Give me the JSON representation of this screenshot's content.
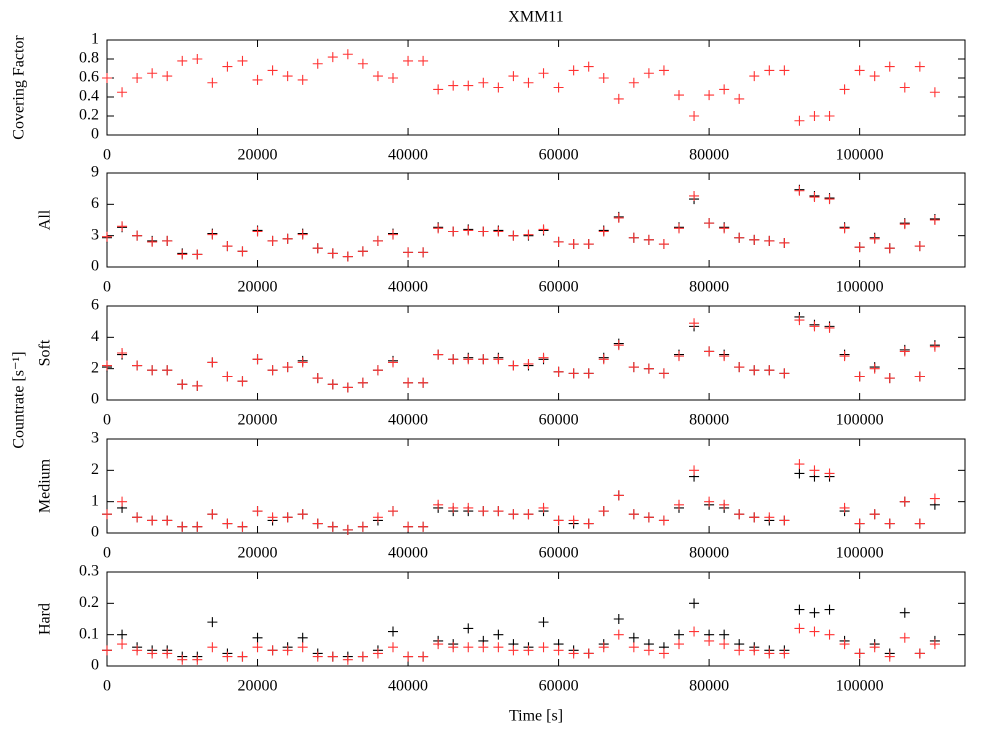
{
  "title": "XMM11",
  "shared_ylabel": "Countrate [s⁻¹]",
  "chart_data": [
    {
      "type": "scatter",
      "ylabel": "Covering Factor",
      "x": [
        0,
        2000,
        4000,
        6000,
        8000,
        10000,
        12000,
        14000,
        16000,
        18000,
        20000,
        22000,
        24000,
        26000,
        28000,
        30000,
        32000,
        34000,
        36000,
        38000,
        40000,
        42000,
        44000,
        46000,
        48000,
        50000,
        52000,
        54000,
        56000,
        58000,
        60000,
        62000,
        64000,
        66000,
        68000,
        70000,
        72000,
        74000,
        76000,
        78000,
        80000,
        82000,
        84000,
        86000,
        88000,
        90000,
        92000,
        94000,
        96000,
        98000,
        100000,
        102000,
        104000,
        106000,
        108000,
        110000
      ],
      "series": [
        {
          "color": "#ff3333",
          "values": [
            0.6,
            0.45,
            0.6,
            0.65,
            0.62,
            0.78,
            0.8,
            0.55,
            0.72,
            0.78,
            0.58,
            0.68,
            0.62,
            0.58,
            0.75,
            0.82,
            0.85,
            0.75,
            0.62,
            0.6,
            0.78,
            0.78,
            0.48,
            0.52,
            0.52,
            0.55,
            0.5,
            0.62,
            0.55,
            0.65,
            0.5,
            0.68,
            0.72,
            0.6,
            0.38,
            0.55,
            0.65,
            0.68,
            0.42,
            0.2,
            0.42,
            0.48,
            0.38,
            0.62,
            0.68,
            0.68,
            0.15,
            0.2,
            0.2,
            0.48,
            0.68,
            0.62,
            0.72,
            0.5,
            0.72,
            0.45
          ]
        }
      ],
      "xlim": [
        0,
        114000
      ],
      "xticks": [
        0,
        20000,
        40000,
        60000,
        80000,
        100000
      ],
      "ylim": [
        0,
        1
      ],
      "yticks": [
        0,
        0.2,
        0.4,
        0.6,
        0.8,
        1
      ]
    },
    {
      "type": "scatter",
      "ylabel": "All",
      "x": [
        0,
        2000,
        4000,
        6000,
        8000,
        10000,
        12000,
        14000,
        16000,
        18000,
        20000,
        22000,
        24000,
        26000,
        28000,
        30000,
        32000,
        34000,
        36000,
        38000,
        40000,
        42000,
        44000,
        46000,
        48000,
        50000,
        52000,
        54000,
        56000,
        58000,
        60000,
        62000,
        64000,
        66000,
        68000,
        70000,
        72000,
        74000,
        76000,
        78000,
        80000,
        82000,
        84000,
        86000,
        88000,
        90000,
        92000,
        94000,
        96000,
        98000,
        100000,
        102000,
        104000,
        106000,
        108000,
        110000
      ],
      "series": [
        {
          "color": "#000000",
          "values": [
            2.8,
            3.8,
            3,
            2.5,
            2.5,
            1.3,
            1.2,
            3.2,
            2,
            1.5,
            3.5,
            2.5,
            2.7,
            3.2,
            1.8,
            1.3,
            1,
            1.5,
            2.5,
            3.2,
            1.4,
            1.4,
            3.8,
            3.4,
            3.6,
            3.4,
            3.5,
            3,
            3,
            3.5,
            2.4,
            2.2,
            2.2,
            3.5,
            4.8,
            2.8,
            2.6,
            2.2,
            3.8,
            6.5,
            4.2,
            3.8,
            2.8,
            2.6,
            2.5,
            2.3,
            7.4,
            6.8,
            6.6,
            3.8,
            1.9,
            2.8,
            1.8,
            4.2,
            2,
            4.6
          ]
        },
        {
          "color": "#ff3333",
          "values": [
            2.9,
            3.9,
            3,
            2.4,
            2.5,
            1.2,
            1.2,
            3.1,
            2,
            1.5,
            3.4,
            2.5,
            2.7,
            3.1,
            1.8,
            1.3,
            1,
            1.5,
            2.5,
            3.1,
            1.4,
            1.4,
            3.7,
            3.4,
            3.5,
            3.4,
            3.4,
            3,
            3.1,
            3.6,
            2.4,
            2.2,
            2.2,
            3.4,
            4.7,
            2.8,
            2.6,
            2.2,
            3.7,
            6.8,
            4.2,
            3.7,
            2.8,
            2.6,
            2.5,
            2.3,
            7.3,
            6.7,
            6.5,
            3.7,
            1.9,
            2.7,
            1.8,
            4.1,
            2,
            4.5
          ]
        }
      ],
      "xlim": [
        0,
        114000
      ],
      "xticks": [
        0,
        20000,
        40000,
        60000,
        80000,
        100000
      ],
      "ylim": [
        0,
        9
      ],
      "yticks": [
        0,
        3,
        6,
        9
      ]
    },
    {
      "type": "scatter",
      "ylabel": "Soft",
      "x": [
        0,
        2000,
        4000,
        6000,
        8000,
        10000,
        12000,
        14000,
        16000,
        18000,
        20000,
        22000,
        24000,
        26000,
        28000,
        30000,
        32000,
        34000,
        36000,
        38000,
        40000,
        42000,
        44000,
        46000,
        48000,
        50000,
        52000,
        54000,
        56000,
        58000,
        60000,
        62000,
        64000,
        66000,
        68000,
        70000,
        72000,
        74000,
        76000,
        78000,
        80000,
        82000,
        84000,
        86000,
        88000,
        90000,
        92000,
        94000,
        96000,
        98000,
        100000,
        102000,
        104000,
        106000,
        108000,
        110000
      ],
      "series": [
        {
          "color": "#000000",
          "values": [
            2.1,
            2.9,
            2.2,
            1.9,
            1.9,
            1,
            0.9,
            2.4,
            1.5,
            1.2,
            2.6,
            1.9,
            2.1,
            2.5,
            1.4,
            1,
            0.8,
            1.1,
            1.9,
            2.5,
            1.1,
            1.1,
            2.9,
            2.6,
            2.7,
            2.6,
            2.7,
            2.2,
            2.2,
            2.6,
            1.8,
            1.7,
            1.7,
            2.7,
            3.6,
            2.1,
            2,
            1.7,
            2.9,
            4.7,
            3.1,
            2.9,
            2.1,
            1.9,
            1.9,
            1.7,
            5.3,
            4.8,
            4.7,
            2.9,
            1.5,
            2.1,
            1.4,
            3.2,
            1.5,
            3.5
          ]
        },
        {
          "color": "#ff3333",
          "values": [
            2.2,
            3,
            2.2,
            1.9,
            1.9,
            1,
            0.9,
            2.4,
            1.5,
            1.2,
            2.6,
            1.9,
            2.1,
            2.4,
            1.4,
            1,
            0.8,
            1.1,
            1.9,
            2.4,
            1.1,
            1.1,
            2.9,
            2.6,
            2.6,
            2.6,
            2.6,
            2.2,
            2.3,
            2.7,
            1.8,
            1.7,
            1.7,
            2.6,
            3.5,
            2.1,
            2,
            1.7,
            2.8,
            4.9,
            3.1,
            2.8,
            2.1,
            1.9,
            1.9,
            1.7,
            5.1,
            4.7,
            4.6,
            2.8,
            1.5,
            2,
            1.4,
            3.1,
            1.5,
            3.4
          ]
        }
      ],
      "xlim": [
        0,
        114000
      ],
      "xticks": [
        0,
        20000,
        40000,
        60000,
        80000,
        100000
      ],
      "ylim": [
        0,
        6
      ],
      "yticks": [
        0,
        2,
        4,
        6
      ]
    },
    {
      "type": "scatter",
      "ylabel": "Medium",
      "x": [
        0,
        2000,
        4000,
        6000,
        8000,
        10000,
        12000,
        14000,
        16000,
        18000,
        20000,
        22000,
        24000,
        26000,
        28000,
        30000,
        32000,
        34000,
        36000,
        38000,
        40000,
        42000,
        44000,
        46000,
        48000,
        50000,
        52000,
        54000,
        56000,
        58000,
        60000,
        62000,
        64000,
        66000,
        68000,
        70000,
        72000,
        74000,
        76000,
        78000,
        80000,
        82000,
        84000,
        86000,
        88000,
        90000,
        92000,
        94000,
        96000,
        98000,
        100000,
        102000,
        104000,
        106000,
        108000,
        110000
      ],
      "series": [
        {
          "color": "#000000",
          "values": [
            0.6,
            0.8,
            0.5,
            0.4,
            0.4,
            0.2,
            0.2,
            0.6,
            0.3,
            0.2,
            0.7,
            0.4,
            0.5,
            0.6,
            0.3,
            0.2,
            0.1,
            0.2,
            0.4,
            0.7,
            0.2,
            0.2,
            0.8,
            0.7,
            0.7,
            0.7,
            0.7,
            0.6,
            0.6,
            0.7,
            0.4,
            0.3,
            0.3,
            0.7,
            1.2,
            0.6,
            0.5,
            0.4,
            0.8,
            1.8,
            0.9,
            0.8,
            0.6,
            0.5,
            0.4,
            0.4,
            1.9,
            1.8,
            1.8,
            0.7,
            0.3,
            0.6,
            0.3,
            1,
            0.3,
            0.9
          ]
        },
        {
          "color": "#ff3333",
          "values": [
            0.6,
            1,
            0.5,
            0.4,
            0.4,
            0.2,
            0.2,
            0.6,
            0.3,
            0.2,
            0.7,
            0.5,
            0.5,
            0.6,
            0.3,
            0.2,
            0.1,
            0.2,
            0.5,
            0.7,
            0.2,
            0.2,
            0.9,
            0.8,
            0.8,
            0.7,
            0.7,
            0.6,
            0.6,
            0.8,
            0.4,
            0.4,
            0.3,
            0.7,
            1.2,
            0.6,
            0.5,
            0.4,
            0.9,
            2,
            1,
            0.9,
            0.6,
            0.5,
            0.5,
            0.4,
            2.2,
            2,
            1.9,
            0.8,
            0.3,
            0.6,
            0.3,
            1,
            0.3,
            1.1
          ]
        }
      ],
      "xlim": [
        0,
        114000
      ],
      "xticks": [
        0,
        20000,
        40000,
        60000,
        80000,
        100000
      ],
      "ylim": [
        0,
        3
      ],
      "yticks": [
        0,
        1,
        2,
        3
      ]
    },
    {
      "type": "scatter",
      "ylabel": "Hard",
      "xlabel": "Time [s]",
      "x": [
        0,
        2000,
        4000,
        6000,
        8000,
        10000,
        12000,
        14000,
        16000,
        18000,
        20000,
        22000,
        24000,
        26000,
        28000,
        30000,
        32000,
        34000,
        36000,
        38000,
        40000,
        42000,
        44000,
        46000,
        48000,
        50000,
        52000,
        54000,
        56000,
        58000,
        60000,
        62000,
        64000,
        66000,
        68000,
        70000,
        72000,
        74000,
        76000,
        78000,
        80000,
        82000,
        84000,
        86000,
        88000,
        90000,
        92000,
        94000,
        96000,
        98000,
        100000,
        102000,
        104000,
        106000,
        108000,
        110000
      ],
      "series": [
        {
          "color": "#000000",
          "values": [
            0.05,
            0.1,
            0.06,
            0.05,
            0.05,
            0.03,
            0.03,
            0.14,
            0.04,
            0.03,
            0.09,
            0.05,
            0.06,
            0.09,
            0.04,
            0.03,
            0.03,
            0.03,
            0.05,
            0.11,
            0.03,
            0.03,
            0.08,
            0.07,
            0.12,
            0.08,
            0.1,
            0.07,
            0.06,
            0.14,
            0.07,
            0.05,
            0.04,
            0.07,
            0.15,
            0.09,
            0.07,
            0.06,
            0.1,
            0.2,
            0.1,
            0.1,
            0.07,
            0.06,
            0.05,
            0.05,
            0.18,
            0.17,
            0.18,
            0.08,
            0.04,
            0.07,
            0.04,
            0.17,
            0.04,
            0.08
          ]
        },
        {
          "color": "#ff3333",
          "values": [
            0.05,
            0.07,
            0.05,
            0.04,
            0.04,
            0.02,
            0.02,
            0.06,
            0.03,
            0.03,
            0.06,
            0.05,
            0.05,
            0.06,
            0.03,
            0.03,
            0.02,
            0.03,
            0.04,
            0.06,
            0.03,
            0.03,
            0.07,
            0.06,
            0.06,
            0.06,
            0.06,
            0.05,
            0.05,
            0.06,
            0.05,
            0.04,
            0.04,
            0.06,
            0.1,
            0.06,
            0.05,
            0.04,
            0.07,
            0.11,
            0.08,
            0.07,
            0.05,
            0.05,
            0.04,
            0.04,
            0.12,
            0.11,
            0.1,
            0.07,
            0.04,
            0.06,
            0.03,
            0.09,
            0.04,
            0.07
          ]
        }
      ],
      "xlim": [
        0,
        114000
      ],
      "xticks": [
        0,
        20000,
        40000,
        60000,
        80000,
        100000
      ],
      "ylim": [
        0,
        0.3
      ],
      "yticks": [
        0,
        0.1,
        0.2,
        0.3
      ]
    }
  ]
}
